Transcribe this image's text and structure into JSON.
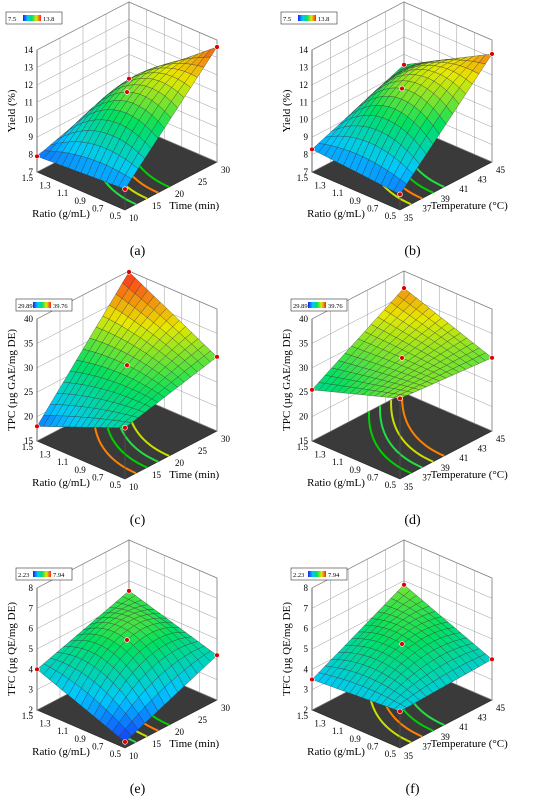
{
  "chart_data": [
    {
      "type": "surface3d",
      "panel_label": "(a)",
      "zlabel": "Yield (%)",
      "xlabel": "Time (min)",
      "ylabel": "Ratio (g/mL)",
      "z_ticks": [
        "7",
        "8",
        "9",
        "10",
        "11",
        "12",
        "13",
        "14"
      ],
      "x_ticks": [
        "10",
        "15",
        "20",
        "25",
        "30"
      ],
      "y_ticks": [
        "0.5",
        "0.7",
        "0.9",
        "1.1",
        "1.3",
        "1.5"
      ],
      "zlim": [
        7,
        14
      ],
      "xlim": [
        10,
        30
      ],
      "ylim": [
        0.5,
        1.5
      ],
      "legend_min": "7.5",
      "legend_max": "13.8",
      "legend_colors": [
        "#1a1aff",
        "#00c8ff",
        "#00e060",
        "#e8e800",
        "#ff2020"
      ],
      "corner_values": [
        8.2,
        13.6,
        7.9,
        9.6
      ],
      "center_value": 11.3
    },
    {
      "type": "surface3d",
      "panel_label": "(b)",
      "zlabel": "Yield (%)",
      "xlabel": "Temperature (°C)",
      "ylabel": "Ratio (g/mL)",
      "z_ticks": [
        "7",
        "8",
        "9",
        "10",
        "11",
        "12",
        "13",
        "14"
      ],
      "x_ticks": [
        "35",
        "37",
        "39",
        "41",
        "43",
        "45"
      ],
      "y_ticks": [
        "0.5",
        "0.7",
        "0.9",
        "1.1",
        "1.3",
        "1.5"
      ],
      "zlim": [
        7,
        14
      ],
      "xlim": [
        35,
        45
      ],
      "ylim": [
        0.5,
        1.5
      ],
      "legend_min": "7.5",
      "legend_max": "13.8",
      "legend_colors": [
        "#1a1aff",
        "#00c8ff",
        "#00e060",
        "#e8e800",
        "#ff2020"
      ],
      "corner_values": [
        7.9,
        13.2,
        8.3,
        10.4
      ],
      "center_value": 11.5
    },
    {
      "type": "surface3d",
      "panel_label": "(c)",
      "zlabel": "TPC (µg GAE/mg DE)",
      "xlabel": "Time (min)",
      "ylabel": "Ratio (g/mL)",
      "z_ticks": [
        "15",
        "20",
        "25",
        "30",
        "35",
        "40"
      ],
      "x_ticks": [
        "10",
        "15",
        "20",
        "25",
        "30"
      ],
      "y_ticks": [
        "0.5",
        "0.7",
        "0.9",
        "1.1",
        "1.3",
        "1.5"
      ],
      "zlim": [
        15,
        40
      ],
      "xlim": [
        10,
        30
      ],
      "ylim": [
        0.5,
        1.5
      ],
      "legend_min": "29.89",
      "legend_max": "39.76",
      "legend_colors": [
        "#1a1aff",
        "#00c8ff",
        "#00e060",
        "#e8e800",
        "#ff2020"
      ],
      "corner_values": [
        25.5,
        30.2,
        18.0,
        39.8
      ],
      "center_value": 29.5
    },
    {
      "type": "surface3d",
      "panel_label": "(d)",
      "zlabel": "TPC (µg GAE/mg DE)",
      "xlabel": "Temperature (°C)",
      "ylabel": "Ratio (g/mL)",
      "z_ticks": [
        "15",
        "20",
        "25",
        "30",
        "35",
        "40"
      ],
      "x_ticks": [
        "35",
        "37",
        "39",
        "41",
        "43",
        "45"
      ],
      "y_ticks": [
        "0.5",
        "0.7",
        "0.9",
        "1.1",
        "1.3",
        "1.5"
      ],
      "zlim": [
        15,
        40
      ],
      "xlim": [
        35,
        45
      ],
      "ylim": [
        0.5,
        1.5
      ],
      "legend_min": "29.89",
      "legend_max": "39.76",
      "legend_colors": [
        "#1a1aff",
        "#00c8ff",
        "#00e060",
        "#e8e800",
        "#ff2020"
      ],
      "corner_values": [
        31.5,
        30.0,
        25.5,
        36.5
      ],
      "center_value": 31.0
    },
    {
      "type": "surface3d",
      "panel_label": "(e)",
      "zlabel": "TFC (µg QE/mg DE)",
      "xlabel": "Time (min)",
      "ylabel": "Ratio (g/mL)",
      "z_ticks": [
        "2",
        "3",
        "4",
        "5",
        "6",
        "7",
        "8"
      ],
      "x_ticks": [
        "10",
        "15",
        "20",
        "25",
        "30"
      ],
      "y_ticks": [
        "0.5",
        "0.7",
        "0.9",
        "1.1",
        "1.3",
        "1.5"
      ],
      "zlim": [
        2,
        8
      ],
      "xlim": [
        10,
        30
      ],
      "ylim": [
        0.5,
        1.5
      ],
      "legend_min": "2.23",
      "legend_max": "7.94",
      "legend_colors": [
        "#1a1aff",
        "#00c8ff",
        "#00e060",
        "#e8e800",
        "#ff2020"
      ],
      "corner_values": [
        2.3,
        4.2,
        4.0,
        5.5
      ],
      "center_value": 5.2
    },
    {
      "type": "surface3d",
      "panel_label": "(f)",
      "zlabel": "TFC (µg QE/mg DE)",
      "xlabel": "Temperature (°C)",
      "ylabel": "Ratio (g/mL)",
      "z_ticks": [
        "2",
        "3",
        "4",
        "5",
        "6",
        "7",
        "8"
      ],
      "x_ticks": [
        "35",
        "37",
        "39",
        "41",
        "43",
        "45"
      ],
      "y_ticks": [
        "0.5",
        "0.7",
        "0.9",
        "1.1",
        "1.3",
        "1.5"
      ],
      "zlim": [
        2,
        8
      ],
      "xlim": [
        35,
        45
      ],
      "ylim": [
        0.5,
        1.5
      ],
      "legend_min": "2.23",
      "legend_max": "7.94",
      "legend_colors": [
        "#1a1aff",
        "#00c8ff",
        "#00e060",
        "#e8e800",
        "#ff2020"
      ],
      "corner_values": [
        3.8,
        4.0,
        3.5,
        5.8
      ],
      "center_value": 5.0
    }
  ]
}
